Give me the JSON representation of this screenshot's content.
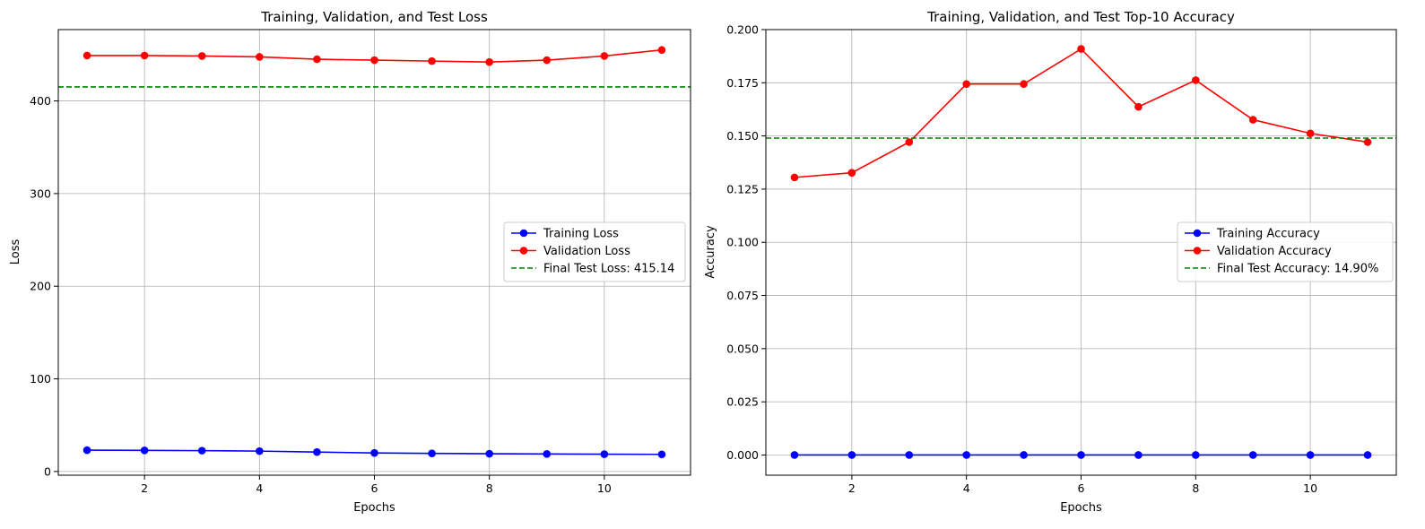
{
  "chart_data": [
    {
      "type": "line",
      "title": "Training, Validation, and Test Loss",
      "xlabel": "Epochs",
      "ylabel": "Loss",
      "x": [
        1,
        2,
        3,
        4,
        5,
        6,
        7,
        8,
        9,
        10,
        11
      ],
      "xlim": [
        0.5,
        11.5
      ],
      "ylim": [
        -4,
        477
      ],
      "xticks": [
        2,
        4,
        6,
        8,
        10
      ],
      "yticks": [
        0,
        100,
        200,
        300,
        400
      ],
      "ytick_labels": [
        "0",
        "100",
        "200",
        "300",
        "400"
      ],
      "grid": true,
      "legend_position": "center-right",
      "series": [
        {
          "name": "Training Loss",
          "color": "#0000ff",
          "style": "solid-marker",
          "values": [
            23.0,
            22.8,
            22.5,
            22.0,
            21.0,
            20.0,
            19.5,
            19.2,
            18.9,
            18.7,
            18.5
          ]
        },
        {
          "name": "Validation Loss",
          "color": "#ff0000",
          "style": "solid-marker",
          "values": [
            449.0,
            449.0,
            448.5,
            447.5,
            445.0,
            444.0,
            443.0,
            442.0,
            444.0,
            448.5,
            455.0
          ]
        },
        {
          "name": "Final Test Loss: 415.14",
          "color": "#008000",
          "style": "dashed-hline",
          "value": 415.14
        }
      ]
    },
    {
      "type": "line",
      "title": "Training, Validation, and Test Top-10 Accuracy",
      "xlabel": "Epochs",
      "ylabel": "Accuracy",
      "x": [
        1,
        2,
        3,
        4,
        5,
        6,
        7,
        8,
        9,
        10,
        11
      ],
      "xlim": [
        0.5,
        11.5
      ],
      "ylim": [
        -0.0095,
        0.2
      ],
      "xticks": [
        2,
        4,
        6,
        8,
        10
      ],
      "yticks": [
        0,
        0.025,
        0.05,
        0.075,
        0.1,
        0.125,
        0.15,
        0.175,
        0.2
      ],
      "ytick_labels": [
        "0.000",
        "0.025",
        "0.050",
        "0.075",
        "0.100",
        "0.125",
        "0.150",
        "0.175",
        "0.200"
      ],
      "grid": true,
      "legend_position": "center-right",
      "series": [
        {
          "name": "Training Accuracy",
          "color": "#0000ff",
          "style": "solid-marker",
          "values": [
            0,
            0,
            0,
            0,
            0,
            0,
            0,
            0,
            0,
            0,
            0
          ]
        },
        {
          "name": "Validation Accuracy",
          "color": "#ff0000",
          "style": "solid-marker",
          "values": [
            0.1305,
            0.1327,
            0.1471,
            0.1744,
            0.1744,
            0.1909,
            0.1637,
            0.1762,
            0.1576,
            0.1512,
            0.1471
          ]
        },
        {
          "name": "Final Test Accuracy: 14.90%",
          "color": "#008000",
          "style": "dashed-hline",
          "value": 0.149
        }
      ]
    }
  ]
}
